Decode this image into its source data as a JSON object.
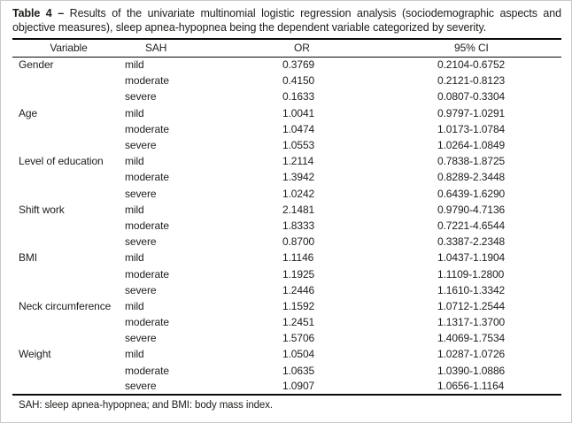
{
  "caption": {
    "label": "Table 4 –",
    "text": "Results of the univariate multinomial logistic regression analysis (sociodemographic aspects and objective measures), sleep apnea-hypopnea being the dependent variable categorized by severity."
  },
  "table": {
    "headers": [
      "Variable",
      "SAH",
      "OR",
      "95% CI"
    ],
    "rows": [
      {
        "variable": "Gender",
        "sah": "mild",
        "or": "0.3769",
        "ci": "0.2104-0.6752"
      },
      {
        "variable": "",
        "sah": "moderate",
        "or": "0.4150",
        "ci": "0.2121-0.8123"
      },
      {
        "variable": "",
        "sah": "severe",
        "or": "0.1633",
        "ci": "0.0807-0.3304"
      },
      {
        "variable": "Age",
        "sah": "mild",
        "or": "1.0041",
        "ci": "0.9797-1.0291"
      },
      {
        "variable": "",
        "sah": "moderate",
        "or": "1.0474",
        "ci": "1.0173-1.0784"
      },
      {
        "variable": "",
        "sah": "severe",
        "or": "1.0553",
        "ci": "1.0264-1.0849"
      },
      {
        "variable": "Level of education",
        "sah": "mild",
        "or": "1.2114",
        "ci": "0.7838-1.8725"
      },
      {
        "variable": "",
        "sah": "moderate",
        "or": "1.3942",
        "ci": "0.8289-2.3448"
      },
      {
        "variable": "",
        "sah": "severe",
        "or": "1.0242",
        "ci": "0.6439-1.6290"
      },
      {
        "variable": "Shift work",
        "sah": "mild",
        "or": "2.1481",
        "ci": "0.9790-4.7136"
      },
      {
        "variable": "",
        "sah": "moderate",
        "or": "1.8333",
        "ci": "0.7221-4.6544"
      },
      {
        "variable": "",
        "sah": "severe",
        "or": "0.8700",
        "ci": "0.3387-2.2348"
      },
      {
        "variable": "BMI",
        "sah": "mild",
        "or": "1.1146",
        "ci": "1.0437-1.1904"
      },
      {
        "variable": "",
        "sah": "moderate",
        "or": "1.1925",
        "ci": "1.1109-1.2800"
      },
      {
        "variable": "",
        "sah": "severe",
        "or": "1.2446",
        "ci": "1.1610-1.3342"
      },
      {
        "variable": "Neck circumference",
        "sah": "mild",
        "or": "1.1592",
        "ci": "1.0712-1.2544"
      },
      {
        "variable": "",
        "sah": "moderate",
        "or": "1.2451",
        "ci": "1.1317-1.3700"
      },
      {
        "variable": "",
        "sah": "severe",
        "or": "1.5706",
        "ci": "1.4069-1.7534"
      },
      {
        "variable": "Weight",
        "sah": "mild",
        "or": "1.0504",
        "ci": "1.0287-1.0726"
      },
      {
        "variable": "",
        "sah": "moderate",
        "or": "1.0635",
        "ci": "1.0390-1.0886"
      },
      {
        "variable": "",
        "sah": "severe",
        "or": "1.0907",
        "ci": "1.0656-1.1164"
      }
    ]
  },
  "footnote": "SAH: sleep apnea-hypopnea; and BMI: body mass index.",
  "colors": {
    "text": "#1d1d1b",
    "rule": "#0a0a0a",
    "frame": "#c9c9c9",
    "background": "#ffffff"
  }
}
